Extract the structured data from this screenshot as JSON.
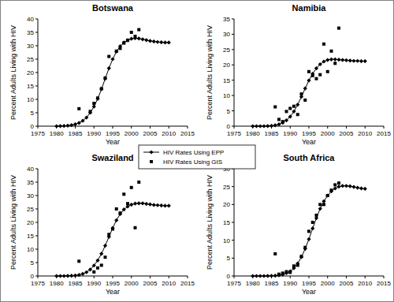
{
  "chart_data": [
    {
      "type": "line",
      "title": "Botswana",
      "x_label": "Year",
      "y_label": "Percent Adults Living with HIV",
      "x": [
        1980,
        1981,
        1982,
        1983,
        1984,
        1985,
        1986,
        1987,
        1988,
        1989,
        1990,
        1991,
        1992,
        1993,
        1994,
        1995,
        1996,
        1997,
        1998,
        1999,
        2000,
        2001,
        2002,
        2003,
        2004,
        2005,
        2006,
        2007,
        2008,
        2009,
        2010
      ],
      "series": [
        {
          "name": "HIV Rates Using EPP",
          "type": "line",
          "marker": "diamond",
          "color": "#000000",
          "values": [
            0,
            0.05,
            0.1,
            0.2,
            0.4,
            0.7,
            1.2,
            2.0,
            3.2,
            5.0,
            7.3,
            10.2,
            13.8,
            17.7,
            21.6,
            25.0,
            27.8,
            29.8,
            31.2,
            32.1,
            32.6,
            32.8,
            32.7,
            32.4,
            32.1,
            31.8,
            31.6,
            31.4,
            31.3,
            31.2,
            31.2
          ]
        },
        {
          "name": "HIV Rates Using GIS",
          "type": "scatter",
          "marker": "square",
          "color": "#000000",
          "values": [
            null,
            null,
            null,
            null,
            null,
            null,
            6.5,
            null,
            null,
            5.5,
            8.5,
            10.5,
            14,
            18,
            26,
            null,
            28,
            29,
            31,
            32,
            35,
            33.5,
            36,
            null,
            null,
            null,
            null,
            null,
            null,
            null,
            null
          ]
        }
      ],
      "xlim": [
        1975,
        2015
      ],
      "xticks": [
        1975,
        1980,
        1985,
        1990,
        1995,
        2000,
        2005,
        2010,
        2015
      ],
      "ylim": [
        0,
        40
      ],
      "yticks": [
        0,
        5,
        10,
        15,
        20,
        25,
        30,
        35,
        40
      ],
      "grid": false,
      "legend": "center"
    },
    {
      "type": "line",
      "title": "Namibia",
      "x_label": "Year",
      "y_label": "Percent Adults Living with HIV",
      "x": [
        1980,
        1981,
        1982,
        1983,
        1984,
        1985,
        1986,
        1987,
        1988,
        1989,
        1990,
        1991,
        1992,
        1993,
        1994,
        1995,
        1996,
        1997,
        1998,
        1999,
        2000,
        2001,
        2002,
        2003,
        2004,
        2005,
        2006,
        2007,
        2008,
        2009,
        2010
      ],
      "series": [
        {
          "type": "line",
          "marker": "diamond",
          "color": "#000000",
          "values": [
            0,
            0,
            0,
            0,
            0.05,
            0.1,
            0.3,
            0.6,
            1.1,
            1.9,
            3.1,
            4.8,
            7.0,
            9.6,
            12.3,
            14.9,
            17.1,
            18.9,
            20.2,
            21.1,
            21.6,
            21.8,
            21.8,
            21.7,
            21.6,
            21.5,
            21.4,
            21.3,
            21.3,
            21.2,
            21.2
          ]
        },
        {
          "type": "scatter",
          "marker": "square",
          "color": "#000000",
          "values": [
            null,
            null,
            null,
            null,
            null,
            null,
            6.3,
            2.2,
            1.5,
            4.8,
            5.8,
            6.5,
            3.8,
            10.5,
            8.5,
            17.8,
            16.5,
            15.5,
            16.8,
            26.8,
            17.8,
            24.5,
            20.5,
            32,
            null,
            null,
            null,
            null,
            null,
            null,
            null
          ]
        }
      ],
      "xlim": [
        1975,
        2015
      ],
      "xticks": [
        1975,
        1980,
        1985,
        1990,
        1995,
        2000,
        2005,
        2010,
        2015
      ],
      "ylim": [
        0,
        35
      ],
      "yticks": [
        0,
        5,
        10,
        15,
        20,
        25,
        30,
        35
      ],
      "grid": false
    },
    {
      "type": "line",
      "title": "Swaziland",
      "x_label": "Year",
      "y_label": "Percent Adults Living with HIV",
      "x": [
        1980,
        1981,
        1982,
        1983,
        1984,
        1985,
        1986,
        1987,
        1988,
        1989,
        1990,
        1991,
        1992,
        1993,
        1994,
        1995,
        1996,
        1997,
        1998,
        1999,
        2000,
        2001,
        2002,
        2003,
        2004,
        2005,
        2006,
        2007,
        2008,
        2009,
        2010
      ],
      "series": [
        {
          "type": "line",
          "marker": "diamond",
          "color": "#000000",
          "values": [
            0,
            0,
            0,
            0.05,
            0.1,
            0.2,
            0.4,
            0.8,
            1.4,
            2.4,
            3.9,
            5.8,
            8.3,
            11.3,
            14.6,
            17.9,
            20.8,
            23.1,
            24.8,
            25.9,
            26.6,
            27.0,
            27.1,
            27.1,
            26.9,
            26.7,
            26.5,
            26.4,
            26.3,
            26.2,
            26.2
          ]
        },
        {
          "type": "scatter",
          "marker": "square",
          "color": "#000000",
          "values": [
            null,
            null,
            null,
            null,
            null,
            null,
            5.5,
            null,
            null,
            null,
            1.5,
            3,
            4,
            7,
            15.5,
            17.5,
            25,
            23.5,
            30.5,
            27,
            33,
            18,
            35,
            null,
            null,
            null,
            null,
            null,
            null,
            null,
            null
          ]
        }
      ],
      "xlim": [
        1975,
        2015
      ],
      "xticks": [
        1975,
        1980,
        1985,
        1990,
        1995,
        2000,
        2005,
        2010,
        2015
      ],
      "ylim": [
        0,
        40
      ],
      "yticks": [
        0,
        5,
        10,
        15,
        20,
        25,
        30,
        35,
        40
      ],
      "grid": false
    },
    {
      "type": "line",
      "title": "South Africa",
      "x_label": "Year",
      "y_label": "Percent Adults Living with HIV",
      "x": [
        1980,
        1981,
        1982,
        1983,
        1984,
        1985,
        1986,
        1987,
        1988,
        1989,
        1990,
        1991,
        1992,
        1993,
        1994,
        1995,
        1996,
        1997,
        1998,
        1999,
        2000,
        2001,
        2002,
        2003,
        2004,
        2005,
        2006,
        2007,
        2008,
        2009,
        2010
      ],
      "series": [
        {
          "type": "line",
          "marker": "diamond",
          "color": "#000000",
          "values": [
            0,
            0,
            0,
            0,
            0.02,
            0.05,
            0.1,
            0.2,
            0.4,
            0.8,
            1.3,
            2.2,
            3.5,
            5.3,
            7.6,
            10.3,
            13.3,
            16.2,
            18.8,
            20.9,
            22.5,
            23.7,
            24.5,
            25.0,
            25.2,
            25.2,
            25.1,
            24.9,
            24.7,
            24.5,
            24.4
          ]
        },
        {
          "type": "scatter",
          "marker": "square",
          "color": "#000000",
          "values": [
            null,
            null,
            null,
            null,
            null,
            null,
            6.2,
            0.5,
            0.8,
            1.2,
            1.0,
            2.8,
            3.0,
            5.5,
            8,
            12.5,
            15,
            17,
            20,
            20,
            22.5,
            24,
            25.5,
            26,
            null,
            null,
            null,
            null,
            null,
            null,
            null
          ]
        }
      ],
      "xlim": [
        1975,
        2015
      ],
      "xticks": [
        1975,
        1980,
        1985,
        1990,
        1995,
        2000,
        2005,
        2010,
        2015
      ],
      "ylim": [
        0,
        30
      ],
      "yticks": [
        0,
        5,
        10,
        15,
        20,
        25,
        30
      ],
      "grid": false
    }
  ]
}
